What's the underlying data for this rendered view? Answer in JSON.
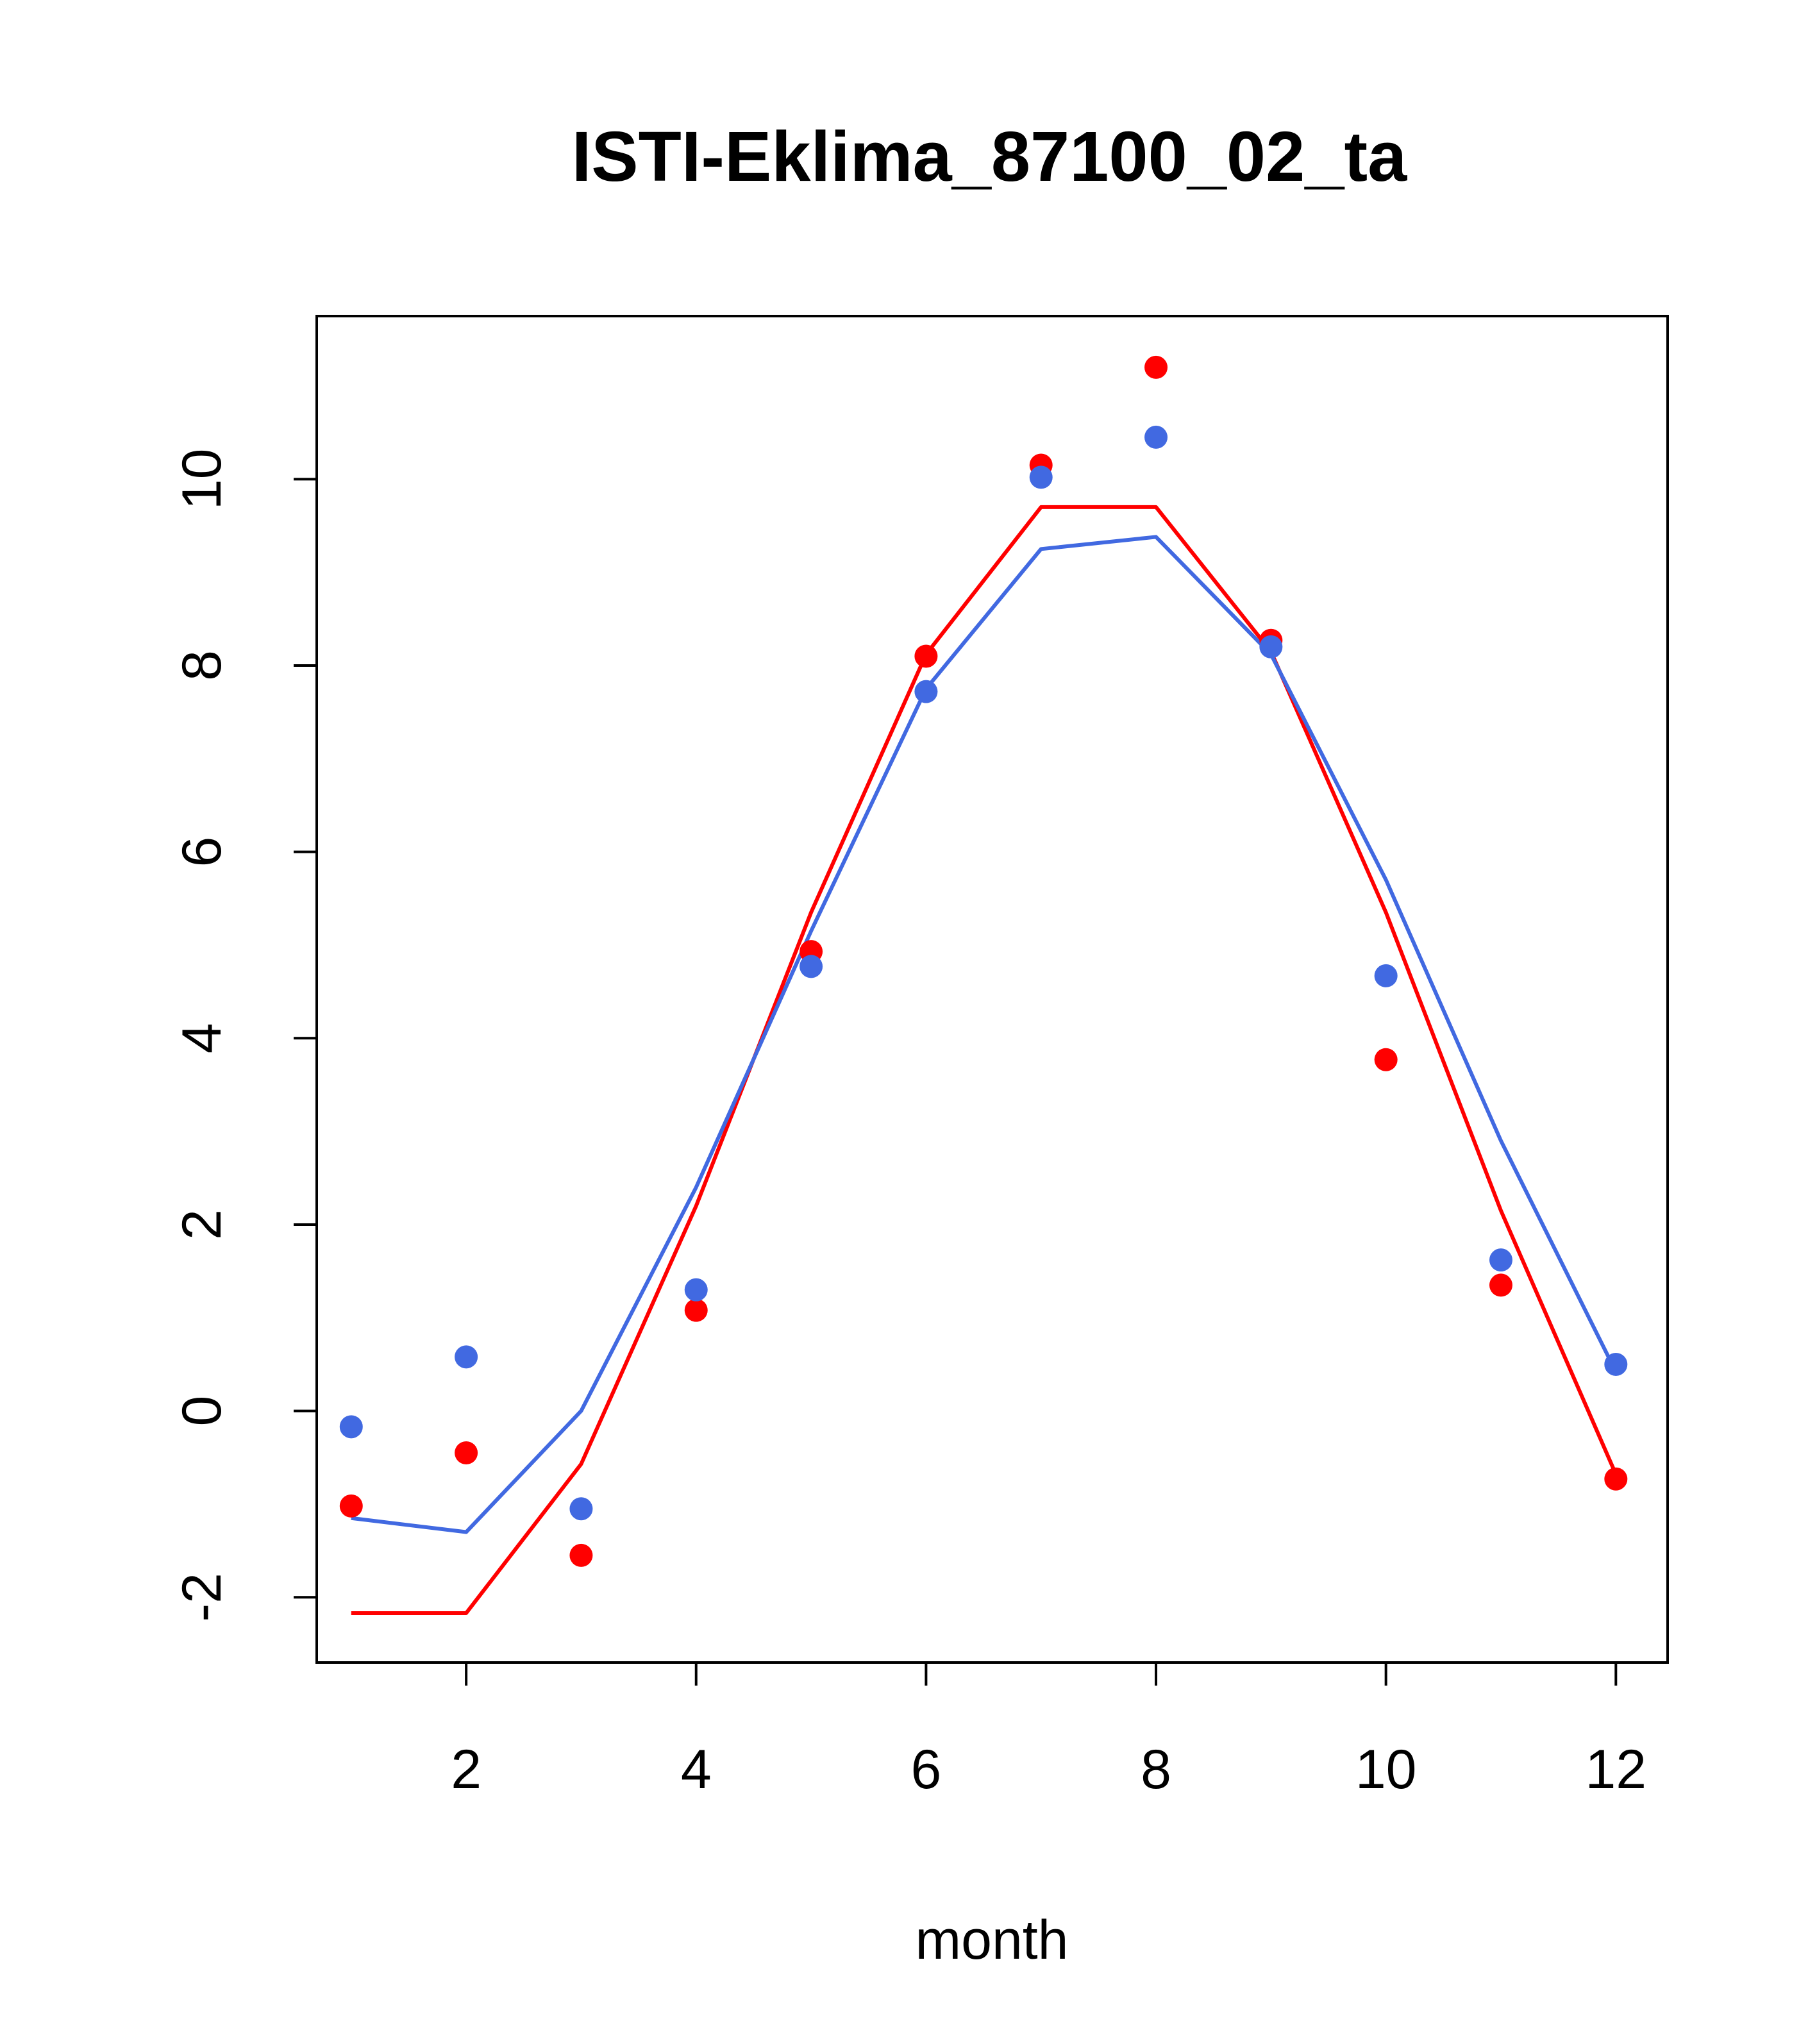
{
  "chart_data": {
    "type": "line",
    "title": "ISTI-Eklima_87100_02_ta",
    "xlabel": "month",
    "ylabel": "",
    "xlim": [
      0.7,
      12.45
    ],
    "ylim": [
      -2.7,
      11.75
    ],
    "x_ticks": [
      2,
      4,
      6,
      8,
      10,
      12
    ],
    "x_tick_labels": [
      "2",
      "4",
      "6",
      "8",
      "10",
      "12"
    ],
    "y_ticks": [
      -2,
      0,
      2,
      4,
      6,
      8,
      10
    ],
    "y_tick_labels": [
      "-2",
      "0",
      "2",
      "4",
      "6",
      "8",
      "10"
    ],
    "grid": false,
    "legend": "none",
    "x": [
      1,
      2,
      3,
      4,
      5,
      6,
      7,
      8,
      9,
      10,
      11,
      12
    ],
    "series": [
      {
        "color": "#ff0000",
        "line": [
          -2.17,
          -2.17,
          -0.57,
          2.2,
          5.35,
          8.12,
          9.7,
          9.7,
          8.15,
          5.35,
          2.15,
          -0.68
        ],
        "points": [
          -1.02,
          -0.45,
          -1.55,
          1.08,
          4.93,
          8.1,
          10.15,
          11.2,
          8.27,
          3.77,
          1.35,
          -0.73
        ]
      },
      {
        "color": "#4169e1",
        "line": [
          -1.15,
          -1.3,
          0.0,
          2.4,
          5.15,
          7.75,
          9.25,
          9.38,
          8.12,
          5.7,
          2.9,
          0.42
        ],
        "points": [
          -0.17,
          0.58,
          -1.05,
          1.3,
          4.77,
          7.72,
          10.02,
          10.45,
          8.2,
          4.67,
          1.62,
          0.5
        ]
      }
    ]
  }
}
